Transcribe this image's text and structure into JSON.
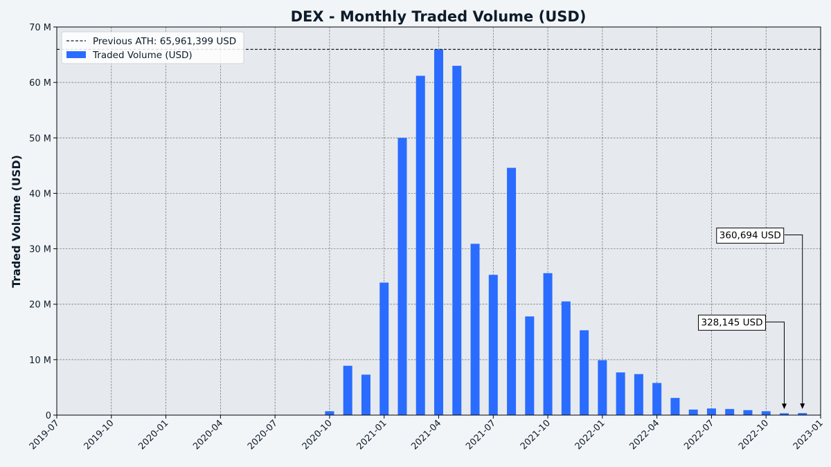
{
  "chart_data": {
    "type": "bar",
    "title": "DEX - Monthly Traded Volume (USD)",
    "xlabel": "",
    "ylabel": "Traded Volume (USD)",
    "ylim": [
      0,
      70000000
    ],
    "xlim": [
      "2019-07",
      "2023-01"
    ],
    "y_ticks": [
      0,
      10000000,
      20000000,
      30000000,
      40000000,
      50000000,
      60000000,
      70000000
    ],
    "y_tick_labels": [
      "0",
      "10 M",
      "20 M",
      "30 M",
      "40 M",
      "50 M",
      "60 M",
      "70 M"
    ],
    "x_ticks": [
      "2019-07",
      "2019-10",
      "2020-01",
      "2020-04",
      "2020-07",
      "2020-10",
      "2021-01",
      "2021-04",
      "2021-07",
      "2021-10",
      "2022-01",
      "2022-04",
      "2022-07",
      "2022-10",
      "2023-01"
    ],
    "grid": true,
    "legend_position": "top-left",
    "colors": {
      "bar": "#2a6cff",
      "ath_line": "#0d1b2a",
      "plot_bg": "#e6eaee",
      "page_bg": "#f2f5f7",
      "grid": "#666666"
    },
    "ath": {
      "value": 65961399,
      "label": "Previous ATH: 65,961,399 USD"
    },
    "series": [
      {
        "name": "Traded Volume (USD)",
        "x": [
          "2020-10",
          "2020-11",
          "2020-12",
          "2021-01",
          "2021-02",
          "2021-03",
          "2021-04",
          "2021-05",
          "2021-06",
          "2021-07",
          "2021-08",
          "2021-09",
          "2021-10",
          "2021-11",
          "2021-12",
          "2022-01",
          "2022-02",
          "2022-03",
          "2022-04",
          "2022-05",
          "2022-06",
          "2022-07",
          "2022-08",
          "2022-09",
          "2022-10",
          "2022-11",
          "2022-12"
        ],
        "values": [
          700000,
          8900000,
          7300000,
          23900000,
          50000000,
          61200000,
          65961399,
          63000000,
          30900000,
          25300000,
          44600000,
          17800000,
          25600000,
          20500000,
          15300000,
          9900000,
          7700000,
          7400000,
          5800000,
          3100000,
          1000000,
          1200000,
          1100000,
          900000,
          700000,
          328145,
          360694
        ]
      }
    ],
    "annotations": [
      {
        "x": "2022-11",
        "value": 328145,
        "label": "328,145 USD",
        "text_y": 16800000
      },
      {
        "x": "2022-12",
        "value": 360694,
        "label": "360,694 USD",
        "text_y": 32500000
      }
    ]
  }
}
